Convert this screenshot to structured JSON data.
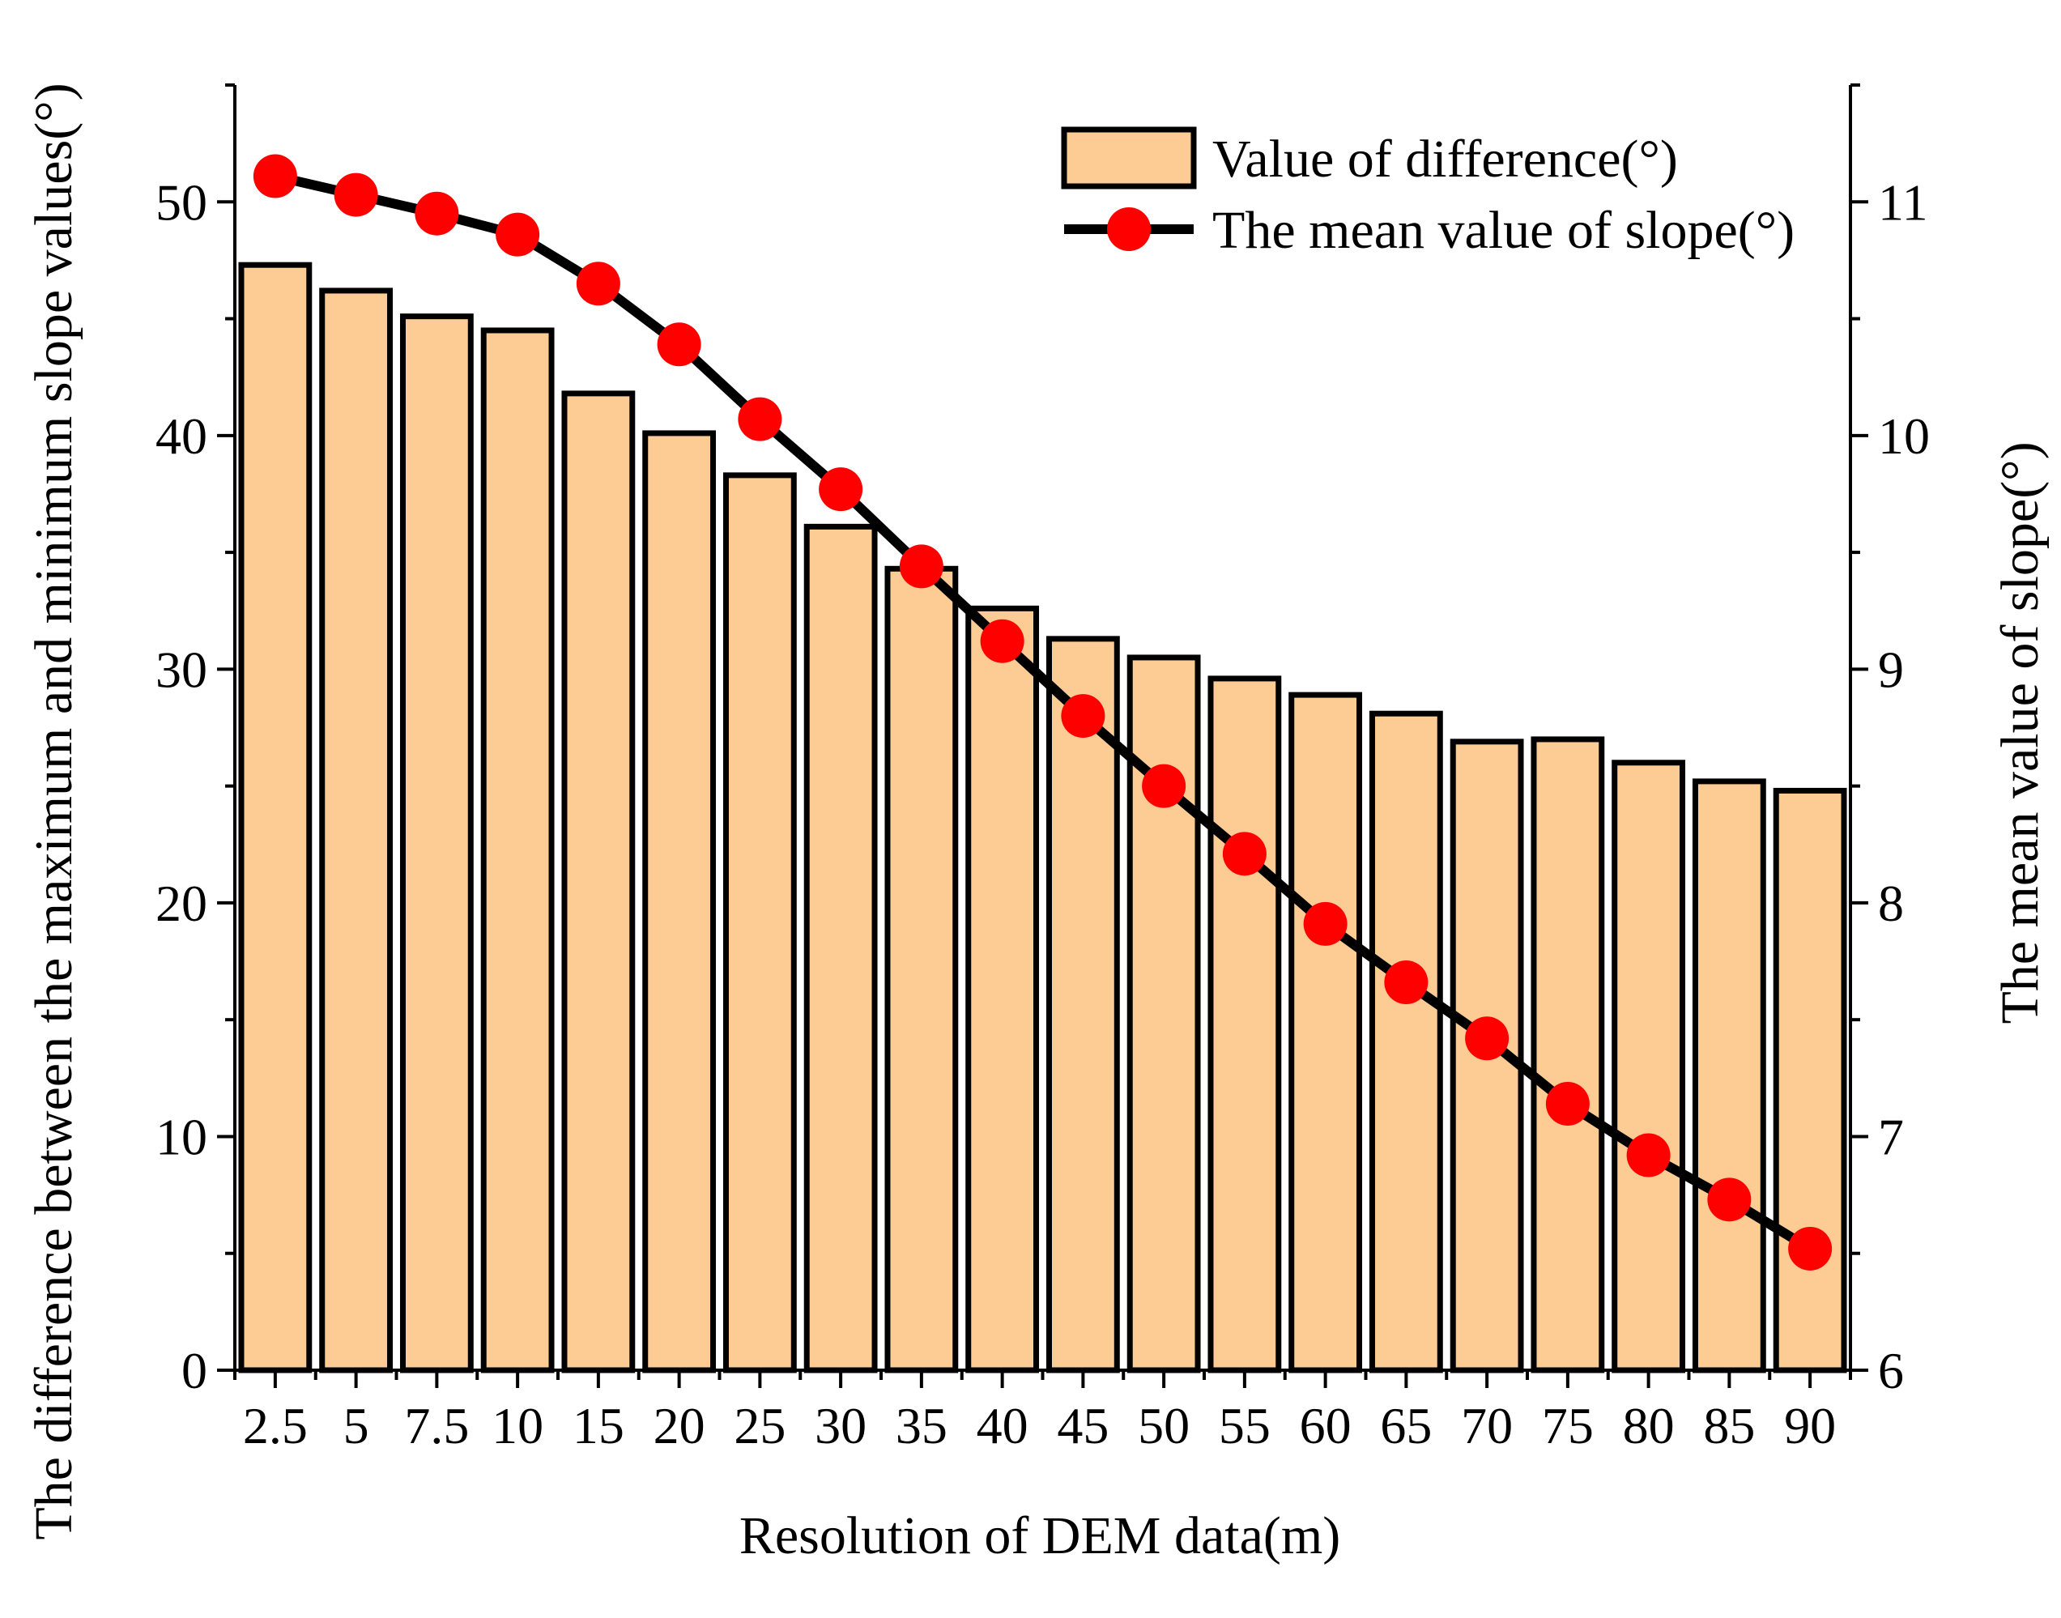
{
  "chart_data": {
    "type": "bar",
    "xlabel": "Resolution of DEM data(m)",
    "ylabel": "The difference between the maximum and minimum slope values(°)",
    "y2label": "The mean value of slope(°)",
    "categories": [
      "2.5",
      "5",
      "7.5",
      "10",
      "15",
      "20",
      "25",
      "30",
      "35",
      "40",
      "45",
      "50",
      "55",
      "60",
      "65",
      "70",
      "75",
      "80",
      "85",
      "90"
    ],
    "ylim": [
      0,
      55
    ],
    "yticks": [
      0,
      10,
      20,
      30,
      40,
      50
    ],
    "y2lim": [
      6,
      11.5
    ],
    "y2ticks": [
      6,
      7,
      8,
      9,
      10,
      11
    ],
    "legend_position": "top-right",
    "grid": false,
    "series": [
      {
        "name": "Value of difference(°)",
        "type": "bar",
        "axis": "left",
        "color": "#FDCC94",
        "values": [
          47.3,
          46.2,
          45.1,
          44.5,
          41.8,
          40.1,
          38.3,
          36.1,
          34.3,
          32.6,
          31.3,
          30.5,
          29.6,
          28.9,
          28.1,
          26.9,
          27.0,
          26.0,
          25.2,
          24.8
        ]
      },
      {
        "name": "The mean value of slope(°)",
        "type": "line",
        "axis": "right",
        "color": "#000000",
        "marker_color": "#FF0000",
        "values": [
          11.11,
          11.03,
          10.95,
          10.86,
          10.65,
          10.39,
          10.07,
          9.77,
          9.44,
          9.12,
          8.8,
          8.5,
          8.21,
          7.91,
          7.66,
          7.42,
          7.14,
          6.92,
          6.73,
          6.52
        ]
      }
    ]
  }
}
